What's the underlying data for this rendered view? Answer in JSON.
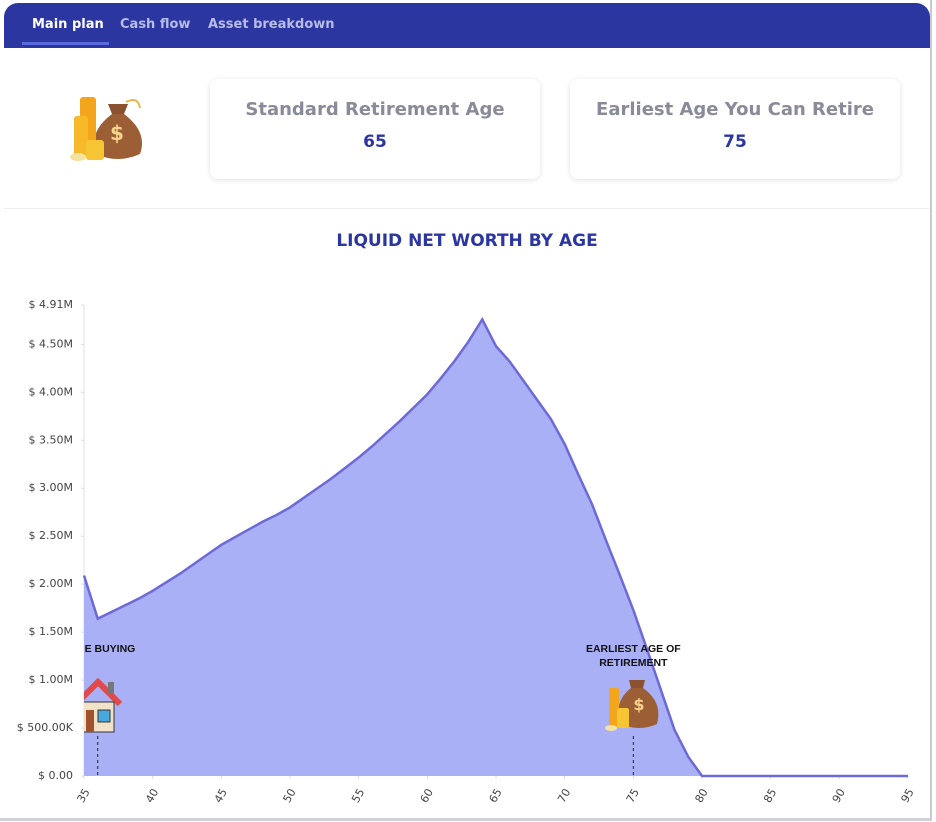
{
  "tabs": [
    "Main plan",
    "Cash flow",
    "Asset breakdown"
  ],
  "cards": [
    {
      "title": "Standard Retirement Age",
      "value": 65
    },
    {
      "title": "Earliest Age You Can Retire",
      "value": 75
    }
  ],
  "chart_data": {
    "type": "area",
    "title": "LIQUID NET WORTH BY AGE",
    "x": [
      35,
      36,
      37,
      38,
      39,
      40,
      41,
      42,
      43,
      44,
      45,
      46,
      47,
      48,
      49,
      50,
      51,
      52,
      53,
      54,
      55,
      56,
      57,
      58,
      59,
      60,
      61,
      62,
      63,
      64,
      65,
      66,
      67,
      68,
      69,
      70,
      71,
      72,
      73,
      74,
      75,
      76,
      77,
      78,
      79,
      80,
      81,
      82,
      83,
      84,
      85,
      86,
      87,
      88,
      89,
      90,
      91,
      92,
      93,
      94,
      95
    ],
    "series": [
      {
        "color": "#a9b0f6",
        "line_color": "#6d6ad8",
        "values": [
          2090000,
          1640000,
          1710000,
          1780000,
          1850000,
          1930000,
          2020000,
          2110000,
          2210000,
          2310000,
          2410000,
          2490000,
          2570000,
          2650000,
          2720000,
          2800000,
          2900000,
          3000000,
          3100000,
          3210000,
          3320000,
          3440000,
          3570000,
          3700000,
          3840000,
          3980000,
          4150000,
          4330000,
          4530000,
          4760000,
          4480000,
          4320000,
          4120000,
          3920000,
          3720000,
          3460000,
          3140000,
          2830000,
          2460000,
          2100000,
          1730000,
          1320000,
          900000,
          480000,
          200000,
          0,
          0,
          0,
          0,
          0,
          0,
          0,
          0,
          0,
          0,
          0,
          0,
          0,
          0,
          0,
          0
        ]
      }
    ],
    "xlim": [
      35,
      95
    ],
    "xticks": [
      35,
      40,
      45,
      50,
      55,
      60,
      65,
      70,
      75,
      80,
      85,
      90,
      95
    ],
    "ylim": [
      0,
      4910000
    ],
    "yticks": [
      {
        "value": 0,
        "label": "$ 0.00"
      },
      {
        "value": 500000,
        "label": "$ 500.00K"
      },
      {
        "value": 1000000,
        "label": "$ 1.00M"
      },
      {
        "value": 1500000,
        "label": "$ 1.50M"
      },
      {
        "value": 2000000,
        "label": "$ 2.00M"
      },
      {
        "value": 2500000,
        "label": "$ 2.50M"
      },
      {
        "value": 3000000,
        "label": "$ 3.00M"
      },
      {
        "value": 3500000,
        "label": "$ 3.50M"
      },
      {
        "value": 4000000,
        "label": "$ 4.00M"
      },
      {
        "value": 4500000,
        "label": "$ 4.50M"
      },
      {
        "value": 4910000,
        "label": "$ 4.91M"
      }
    ],
    "annotations": [
      {
        "x": 36,
        "label": "HOME BUYING"
      },
      {
        "x": 75,
        "label": "EARLIEST AGE OF RETIREMENT"
      }
    ]
  }
}
